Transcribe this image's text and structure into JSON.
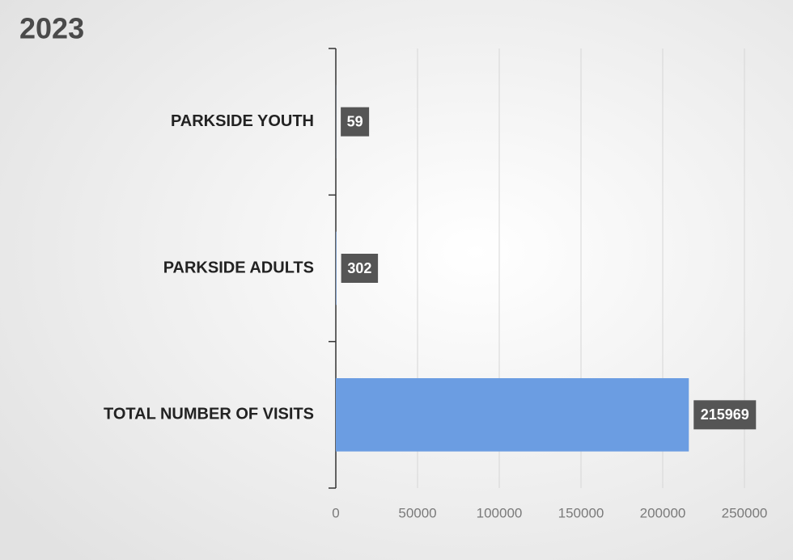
{
  "chart_data": {
    "type": "bar",
    "orientation": "horizontal",
    "title": "2023",
    "categories": [
      "PARKSIDE YOUTH",
      "PARKSIDE ADULTS",
      "TOTAL NUMBER OF VISITS"
    ],
    "values": [
      59,
      302,
      215969
    ],
    "color": "#6b9de2",
    "xlim": [
      0,
      250000
    ],
    "xticks": [
      0,
      50000,
      100000,
      150000,
      200000,
      250000
    ],
    "grid": true
  }
}
